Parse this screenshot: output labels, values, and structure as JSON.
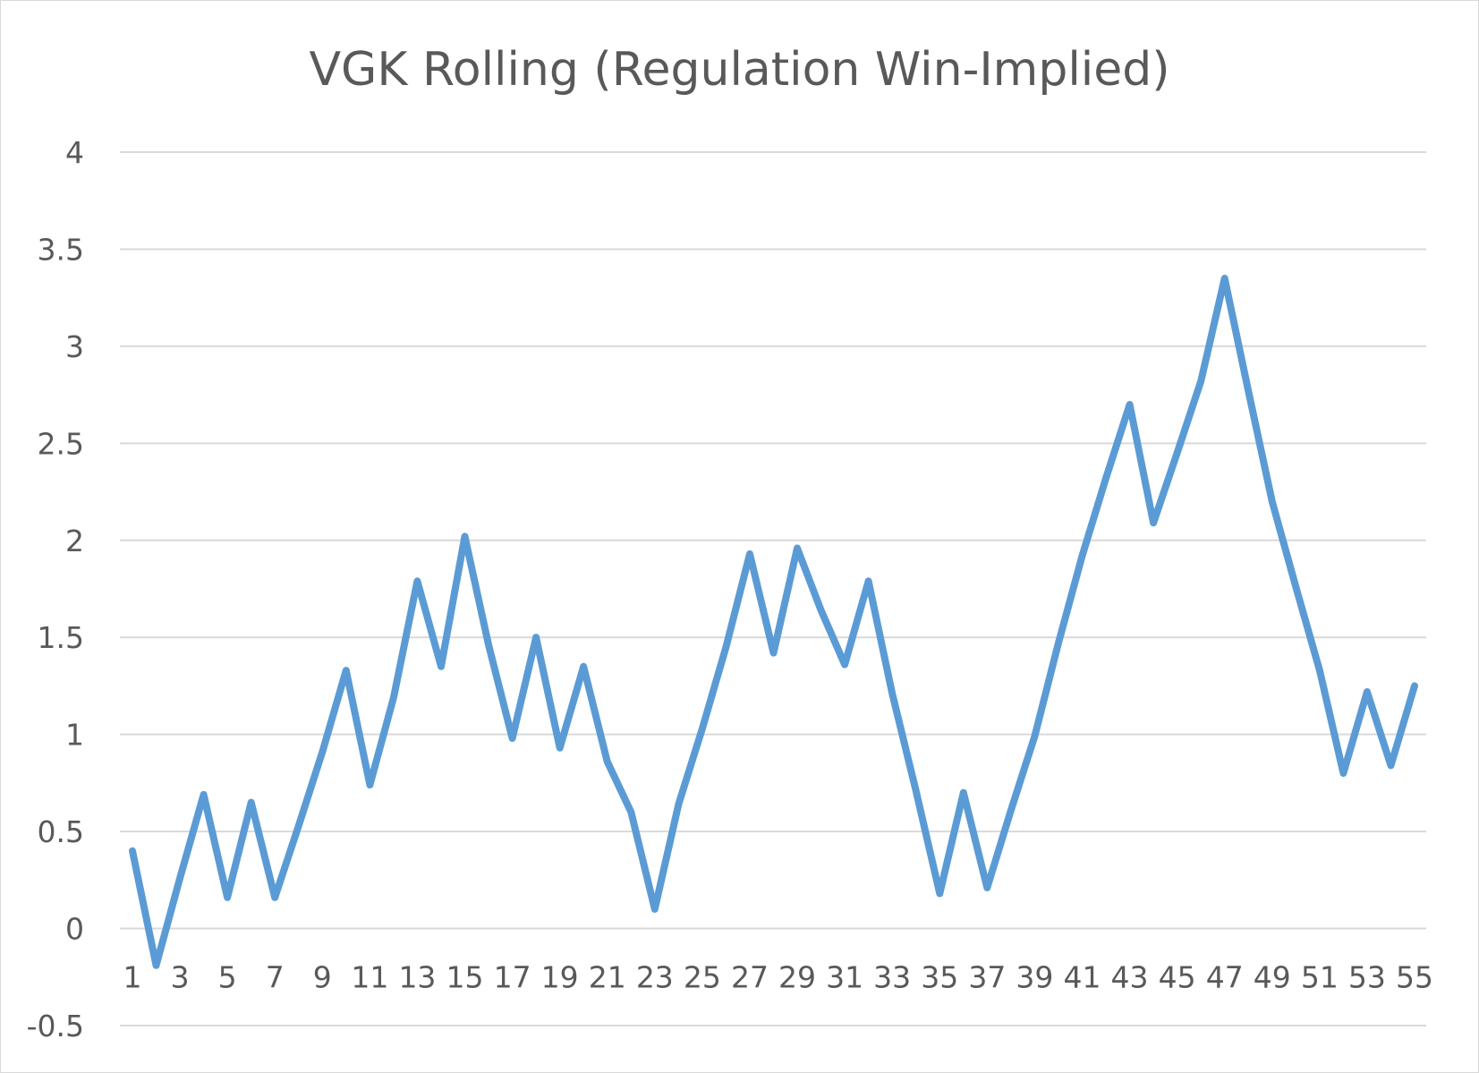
{
  "chart_data": {
    "type": "line",
    "title": "VGK Rolling (Regulation Win-Implied)",
    "xlabel": "",
    "ylabel": "",
    "ylim": [
      -0.5,
      4
    ],
    "y_ticks": [
      "-0.5",
      "0",
      "0.5",
      "1",
      "1.5",
      "2",
      "2.5",
      "3",
      "3.5",
      "4"
    ],
    "x_tick_labels": [
      "1",
      "3",
      "5",
      "7",
      "9",
      "11",
      "13",
      "15",
      "17",
      "19",
      "21",
      "23",
      "25",
      "27",
      "29",
      "31",
      "33",
      "35",
      "37",
      "39",
      "41",
      "43",
      "45",
      "47",
      "49",
      "51",
      "53",
      "55"
    ],
    "grid": true,
    "legend": "none",
    "series": [
      {
        "color": "#5b9bd5",
        "x": [
          1,
          2,
          3,
          4,
          5,
          6,
          7,
          8,
          9,
          10,
          11,
          12,
          13,
          14,
          15,
          16,
          17,
          18,
          19,
          20,
          21,
          22,
          23,
          24,
          25,
          26,
          27,
          28,
          29,
          30,
          31,
          32,
          33,
          34,
          35,
          36,
          37,
          38,
          39,
          40,
          41,
          42,
          43,
          44,
          45,
          46,
          47,
          48,
          49,
          50,
          51,
          52,
          53,
          54,
          55
        ],
        "values": [
          0.4,
          -0.19,
          0.26,
          0.69,
          0.16,
          0.65,
          0.16,
          0.53,
          0.91,
          1.33,
          0.74,
          1.19,
          1.79,
          1.35,
          2.02,
          1.46,
          0.98,
          1.5,
          0.93,
          1.35,
          0.86,
          0.6,
          0.1,
          0.64,
          1.03,
          1.45,
          1.93,
          1.42,
          1.96,
          1.64,
          1.36,
          1.79,
          1.21,
          0.71,
          0.18,
          0.7,
          0.21,
          0.61,
          0.99,
          1.47,
          1.92,
          2.32,
          2.7,
          2.09,
          2.45,
          2.82,
          3.35,
          2.77,
          2.2,
          1.76,
          1.33,
          0.8,
          1.22,
          0.84,
          1.25
        ]
      }
    ]
  }
}
